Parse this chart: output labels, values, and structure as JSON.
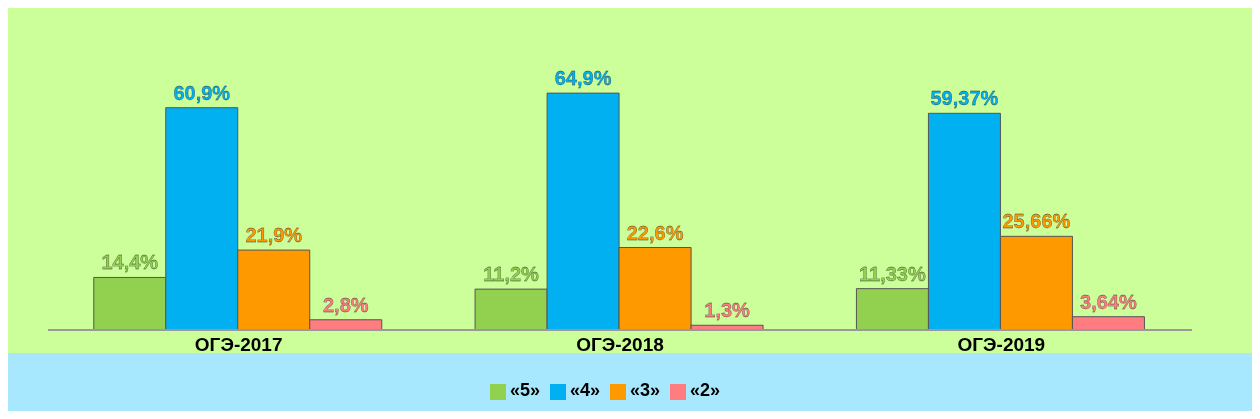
{
  "chart_data": {
    "type": "bar",
    "categories": [
      "ОГЭ-2017",
      "ОГЭ-2018",
      "ОГЭ-2019"
    ],
    "series": [
      {
        "name": "«5»",
        "color": "#92d050",
        "values": [
          14.4,
          11.2,
          11.33
        ],
        "value_labels": [
          "14,4%",
          "11,2%",
          "11,33%"
        ]
      },
      {
        "name": "«4»",
        "color": "#00b0f0",
        "values": [
          60.9,
          64.9,
          59.37
        ],
        "value_labels": [
          "60,9%",
          "64,9%",
          "59,37%"
        ]
      },
      {
        "name": "«3»",
        "color": "#ff9900",
        "values": [
          21.9,
          22.6,
          25.66
        ],
        "value_labels": [
          "21,9%",
          "22,6%",
          "25,66%"
        ]
      },
      {
        "name": "«2»",
        "color": "#ff7c80",
        "values": [
          2.8,
          1.3,
          3.64
        ],
        "value_labels": [
          "2,8%",
          "1,3%",
          "3,64%"
        ]
      }
    ],
    "tick_labels": "x",
    "legend": "bottom"
  }
}
